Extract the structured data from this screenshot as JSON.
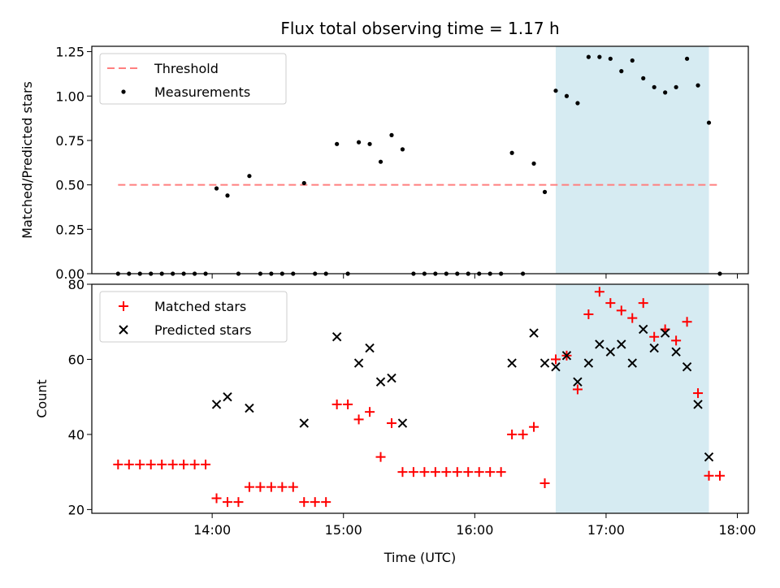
{
  "title": "Flux total observing time = 1.17 h",
  "xlabel": "Time (UTC)",
  "x_ticks": [
    "14:00",
    "15:00",
    "16:00",
    "17:00",
    "18:00"
  ],
  "highlight": {
    "start": "16:37",
    "end": "17:47",
    "color": "#add8e6"
  },
  "chart_data": [
    {
      "type": "scatter",
      "ylabel": "Matched/Predicted stars",
      "ylim": [
        0,
        1.28
      ],
      "y_ticks": [
        "0.00",
        "0.25",
        "0.50",
        "0.75",
        "1.00",
        "1.25"
      ],
      "legend": [
        "Threshold",
        "Measurements"
      ],
      "legend_position": "upper left",
      "threshold": {
        "name": "Threshold",
        "value": 0.5,
        "x_range": [
          "13:17",
          "17:52"
        ],
        "color": "#ff7f7f"
      },
      "series": [
        {
          "name": "Measurements",
          "color": "#000000",
          "x": [
            "13:17",
            "13:22",
            "13:27",
            "13:32",
            "13:37",
            "13:42",
            "13:47",
            "13:52",
            "13:57",
            "14:02",
            "14:07",
            "14:12",
            "14:17",
            "14:22",
            "14:27",
            "14:32",
            "14:37",
            "14:42",
            "14:47",
            "14:52",
            "14:57",
            "15:02",
            "15:07",
            "15:12",
            "15:17",
            "15:22",
            "15:27",
            "15:32",
            "15:37",
            "15:42",
            "15:47",
            "15:52",
            "15:57",
            "16:02",
            "16:07",
            "16:12",
            "16:17",
            "16:22",
            "16:27",
            "16:32",
            "16:37",
            "16:42",
            "16:47",
            "16:52",
            "16:57",
            "17:02",
            "17:07",
            "17:12",
            "17:17",
            "17:22",
            "17:27",
            "17:32",
            "17:37",
            "17:42",
            "17:47",
            "17:52"
          ],
          "y": [
            0,
            0,
            0,
            0,
            0,
            0,
            0,
            0,
            0,
            0.48,
            0.44,
            0,
            0.55,
            0,
            0,
            0,
            0,
            0.51,
            0,
            0,
            0.73,
            0,
            0.74,
            0.73,
            0.63,
            0.78,
            0.7,
            0,
            0,
            0,
            0,
            0,
            0,
            0,
            0,
            0,
            0.68,
            0,
            0.62,
            0.46,
            1.03,
            1.0,
            0.96,
            1.22,
            1.22,
            1.21,
            1.14,
            1.2,
            1.1,
            1.05,
            1.02,
            1.05,
            1.21,
            1.06,
            0.85,
            0
          ]
        }
      ]
    },
    {
      "type": "scatter",
      "ylabel": "Count",
      "ylim": [
        19,
        80
      ],
      "y_ticks": [
        "20",
        "40",
        "60",
        "80"
      ],
      "legend": [
        "Matched stars",
        "Predicted stars"
      ],
      "legend_position": "upper left",
      "series": [
        {
          "name": "Matched stars",
          "marker": "plus",
          "color": "#ff0000",
          "x": [
            "13:17",
            "13:22",
            "13:27",
            "13:32",
            "13:37",
            "13:42",
            "13:47",
            "13:52",
            "13:57",
            "14:02",
            "14:07",
            "14:12",
            "14:17",
            "14:22",
            "14:27",
            "14:32",
            "14:37",
            "14:42",
            "14:47",
            "14:52",
            "14:57",
            "15:02",
            "15:07",
            "15:12",
            "15:17",
            "15:22",
            "15:27",
            "15:32",
            "15:37",
            "15:42",
            "15:47",
            "15:52",
            "15:57",
            "16:02",
            "16:07",
            "16:12",
            "16:17",
            "16:22",
            "16:27",
            "16:32",
            "16:37",
            "16:42",
            "16:47",
            "16:52",
            "16:57",
            "17:02",
            "17:07",
            "17:12",
            "17:17",
            "17:22",
            "17:27",
            "17:32",
            "17:37",
            "17:42",
            "17:47",
            "17:52"
          ],
          "y": [
            32,
            32,
            32,
            32,
            32,
            32,
            32,
            32,
            32,
            23,
            22,
            22,
            26,
            26,
            26,
            26,
            26,
            22,
            22,
            22,
            48,
            48,
            44,
            46,
            34,
            43,
            30,
            30,
            30,
            30,
            30,
            30,
            30,
            30,
            30,
            30,
            40,
            40,
            42,
            27,
            60,
            61,
            52,
            72,
            78,
            75,
            73,
            71,
            75,
            66,
            68,
            65,
            70,
            51,
            29,
            29
          ]
        },
        {
          "name": "Predicted stars",
          "marker": "x",
          "color": "#000000",
          "x": [
            "14:02",
            "14:07",
            "14:17",
            "14:42",
            "14:57",
            "15:07",
            "15:12",
            "15:17",
            "15:22",
            "15:27",
            "16:17",
            "16:27",
            "16:32",
            "16:37",
            "16:42",
            "16:47",
            "16:52",
            "16:57",
            "17:02",
            "17:07",
            "17:12",
            "17:17",
            "17:22",
            "17:27",
            "17:32",
            "17:37",
            "17:42",
            "17:47"
          ],
          "y": [
            48,
            50,
            47,
            43,
            66,
            59,
            63,
            54,
            55,
            43,
            59,
            67,
            59,
            58,
            61,
            54,
            59,
            64,
            62,
            64,
            59,
            68,
            63,
            67,
            62,
            58,
            48,
            34
          ]
        }
      ]
    }
  ]
}
